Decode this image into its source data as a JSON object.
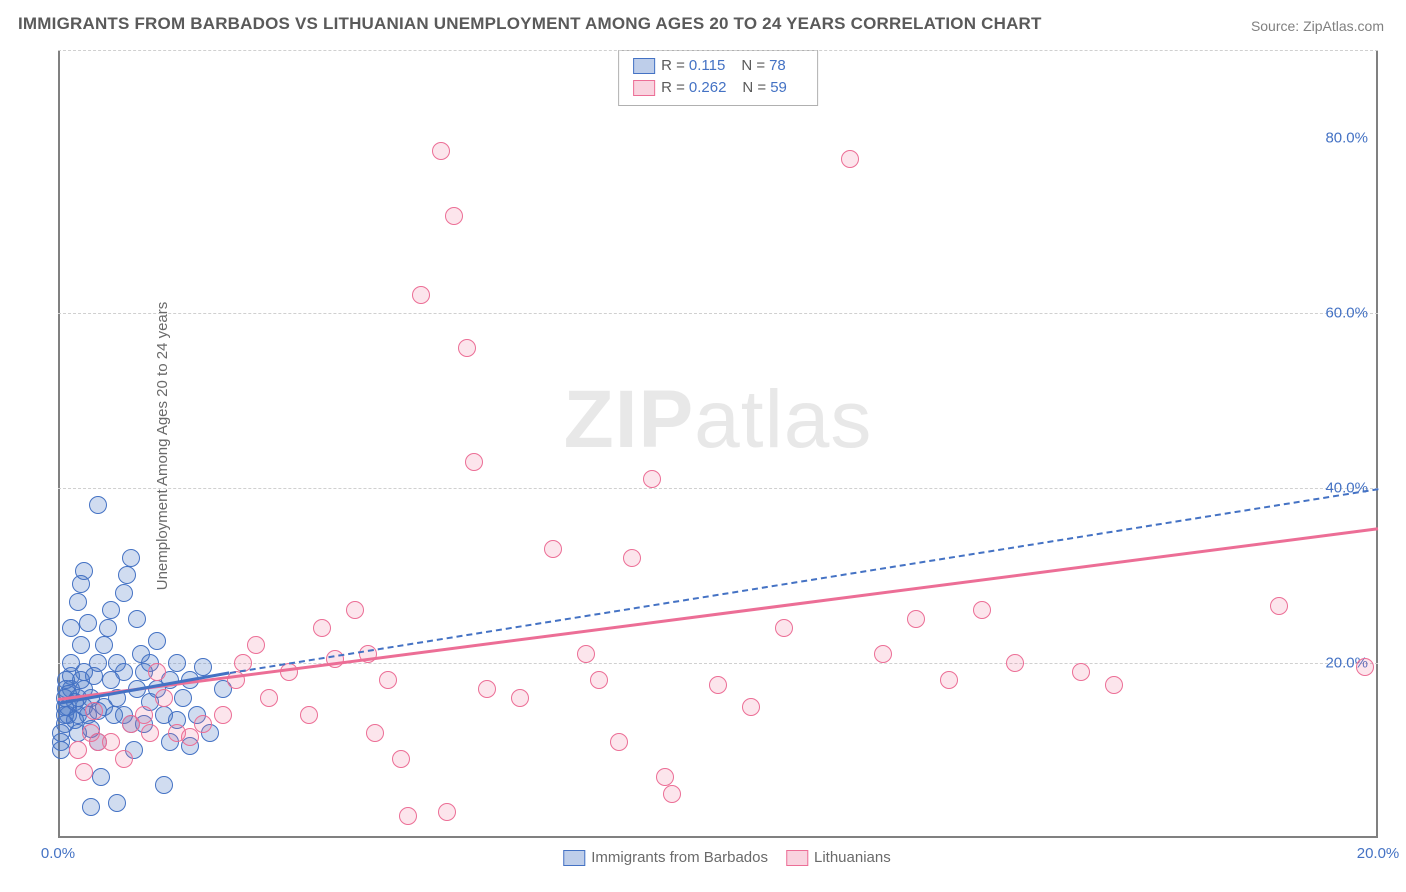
{
  "title": "IMMIGRANTS FROM BARBADOS VS LITHUANIAN UNEMPLOYMENT AMONG AGES 20 TO 24 YEARS CORRELATION CHART",
  "source": "Source: ZipAtlas.com",
  "ylabel": "Unemployment Among Ages 20 to 24 years",
  "watermark_bold": "ZIP",
  "watermark_rest": "atlas",
  "colors": {
    "series_blue": "#4472c4",
    "series_pink": "#ec6e96",
    "axis": "#808080",
    "grid": "#d0d0d0",
    "text_gray": "#6a6a6a",
    "tick_label": "#4472c4",
    "background": "#ffffff"
  },
  "typography": {
    "title_fontsize": 17,
    "label_fontsize": 15,
    "tick_fontsize": 15,
    "legend_fontsize": 15,
    "watermark_fontsize": 82
  },
  "chart": {
    "type": "scatter",
    "xlim": [
      0,
      20
    ],
    "ylim": [
      0,
      90
    ],
    "marker_radius": 8,
    "xticks": [
      {
        "value": 0,
        "label": "0.0%"
      },
      {
        "value": 20,
        "label": "20.0%"
      }
    ],
    "yticks": [
      {
        "value": 20,
        "label": "20.0%"
      },
      {
        "value": 40,
        "label": "40.0%"
      },
      {
        "value": 60,
        "label": "60.0%"
      },
      {
        "value": 80,
        "label": "80.0%"
      }
    ],
    "gridlines_y": [
      20,
      40,
      60,
      90
    ],
    "series": [
      {
        "id": "barbados",
        "label": "Immigrants from Barbados",
        "color": "#4472c4",
        "r": 0.115,
        "n": 78,
        "trend": {
          "x1": 0,
          "y1": 15.5,
          "x2": 2.6,
          "y2": 19.0,
          "dashed": false
        },
        "trend_ext": {
          "x1": 2.6,
          "y1": 19.0,
          "x2": 20,
          "y2": 40.0,
          "dashed": true
        },
        "points": [
          [
            0.05,
            10.0
          ],
          [
            0.05,
            11.0
          ],
          [
            0.05,
            12.0
          ],
          [
            0.1,
            13.0
          ],
          [
            0.1,
            14.0
          ],
          [
            0.1,
            15.0
          ],
          [
            0.1,
            16.0
          ],
          [
            0.12,
            17.0
          ],
          [
            0.12,
            18.0
          ],
          [
            0.15,
            16.5
          ],
          [
            0.15,
            15.0
          ],
          [
            0.15,
            14.0
          ],
          [
            0.2,
            17.0
          ],
          [
            0.2,
            18.5
          ],
          [
            0.2,
            20.0
          ],
          [
            0.25,
            13.5
          ],
          [
            0.25,
            15.5
          ],
          [
            0.3,
            16.0
          ],
          [
            0.3,
            14.0
          ],
          [
            0.3,
            12.0
          ],
          [
            0.35,
            18.0
          ],
          [
            0.35,
            22.0
          ],
          [
            0.4,
            19.0
          ],
          [
            0.4,
            17.0
          ],
          [
            0.4,
            15.0
          ],
          [
            0.45,
            14.0
          ],
          [
            0.5,
            16.0
          ],
          [
            0.5,
            12.5
          ],
          [
            0.55,
            18.5
          ],
          [
            0.6,
            20.0
          ],
          [
            0.6,
            14.5
          ],
          [
            0.6,
            11.0
          ],
          [
            0.65,
            7.0
          ],
          [
            0.7,
            15.0
          ],
          [
            0.7,
            22.0
          ],
          [
            0.75,
            24.0
          ],
          [
            0.8,
            26.0
          ],
          [
            0.8,
            18.0
          ],
          [
            0.85,
            14.0
          ],
          [
            0.9,
            20.0
          ],
          [
            0.9,
            16.0
          ],
          [
            1.0,
            19.0
          ],
          [
            1.0,
            14.0
          ],
          [
            1.0,
            28.0
          ],
          [
            1.05,
            30.0
          ],
          [
            1.1,
            32.0
          ],
          [
            1.1,
            13.0
          ],
          [
            1.15,
            10.0
          ],
          [
            1.2,
            25.0
          ],
          [
            1.2,
            17.0
          ],
          [
            1.25,
            21.0
          ],
          [
            1.3,
            19.0
          ],
          [
            1.3,
            13.0
          ],
          [
            1.4,
            15.5
          ],
          [
            1.4,
            20.0
          ],
          [
            1.5,
            22.5
          ],
          [
            1.5,
            17.0
          ],
          [
            1.6,
            14.0
          ],
          [
            1.6,
            6.0
          ],
          [
            1.7,
            18.0
          ],
          [
            1.7,
            11.0
          ],
          [
            1.8,
            20.0
          ],
          [
            1.8,
            13.5
          ],
          [
            1.9,
            16.0
          ],
          [
            2.0,
            18.0
          ],
          [
            2.0,
            10.5
          ],
          [
            2.1,
            14.0
          ],
          [
            2.2,
            19.5
          ],
          [
            2.3,
            12.0
          ],
          [
            2.5,
            17.0
          ],
          [
            0.5,
            3.5
          ],
          [
            0.9,
            4.0
          ],
          [
            0.3,
            27.0
          ],
          [
            0.35,
            29.0
          ],
          [
            0.4,
            30.5
          ],
          [
            0.2,
            24.0
          ],
          [
            0.6,
            38.0
          ],
          [
            0.45,
            24.5
          ]
        ]
      },
      {
        "id": "lithuanians",
        "label": "Lithuanians",
        "color": "#ec6e96",
        "r": 0.262,
        "n": 59,
        "trend": {
          "x1": 0,
          "y1": 16.0,
          "x2": 20,
          "y2": 35.5,
          "dashed": false
        },
        "points": [
          [
            0.3,
            10.0
          ],
          [
            0.4,
            7.5
          ],
          [
            0.5,
            12.0
          ],
          [
            0.6,
            11.0
          ],
          [
            0.8,
            11.0
          ],
          [
            1.0,
            9.0
          ],
          [
            1.1,
            13.0
          ],
          [
            1.3,
            14.0
          ],
          [
            1.4,
            12.0
          ],
          [
            1.5,
            19.0
          ],
          [
            1.6,
            16.0
          ],
          [
            1.8,
            12.0
          ],
          [
            2.0,
            11.5
          ],
          [
            2.2,
            13.0
          ],
          [
            2.5,
            14.0
          ],
          [
            2.7,
            18.0
          ],
          [
            2.8,
            20.0
          ],
          [
            3.0,
            22.0
          ],
          [
            3.2,
            16.0
          ],
          [
            3.5,
            19.0
          ],
          [
            3.8,
            14.0
          ],
          [
            4.0,
            24.0
          ],
          [
            4.2,
            20.5
          ],
          [
            4.5,
            26.0
          ],
          [
            4.7,
            21.0
          ],
          [
            4.8,
            12.0
          ],
          [
            5.0,
            18.0
          ],
          [
            5.2,
            9.0
          ],
          [
            5.3,
            2.5
          ],
          [
            5.5,
            62.0
          ],
          [
            5.8,
            78.5
          ],
          [
            6.0,
            71.0
          ],
          [
            6.2,
            56.0
          ],
          [
            6.3,
            43.0
          ],
          [
            6.5,
            17.0
          ],
          [
            7.0,
            16.0
          ],
          [
            7.5,
            33.0
          ],
          [
            8.0,
            21.0
          ],
          [
            8.2,
            18.0
          ],
          [
            8.5,
            11.0
          ],
          [
            8.7,
            32.0
          ],
          [
            9.0,
            41.0
          ],
          [
            9.2,
            7.0
          ],
          [
            9.3,
            5.0
          ],
          [
            10.0,
            17.5
          ],
          [
            10.5,
            15.0
          ],
          [
            11.0,
            24.0
          ],
          [
            12.0,
            77.5
          ],
          [
            12.5,
            21.0
          ],
          [
            13.0,
            25.0
          ],
          [
            13.5,
            18.0
          ],
          [
            14.0,
            26.0
          ],
          [
            14.5,
            20.0
          ],
          [
            15.5,
            19.0
          ],
          [
            16.0,
            17.5
          ],
          [
            18.5,
            26.5
          ],
          [
            19.8,
            19.5
          ],
          [
            5.9,
            3.0
          ],
          [
            0.55,
            14.5
          ]
        ]
      }
    ],
    "legend_top": {
      "rows": [
        {
          "swatch": "blue",
          "r_label": "R =",
          "r_value": "0.115",
          "n_label": "N =",
          "n_value": "78"
        },
        {
          "swatch": "pink",
          "r_label": "R =",
          "r_value": "0.262",
          "n_label": "N =",
          "n_value": "59"
        }
      ]
    },
    "legend_bottom": {
      "items": [
        {
          "swatch": "blue",
          "label": "Immigrants from Barbados"
        },
        {
          "swatch": "pink",
          "label": "Lithuanians"
        }
      ]
    }
  }
}
